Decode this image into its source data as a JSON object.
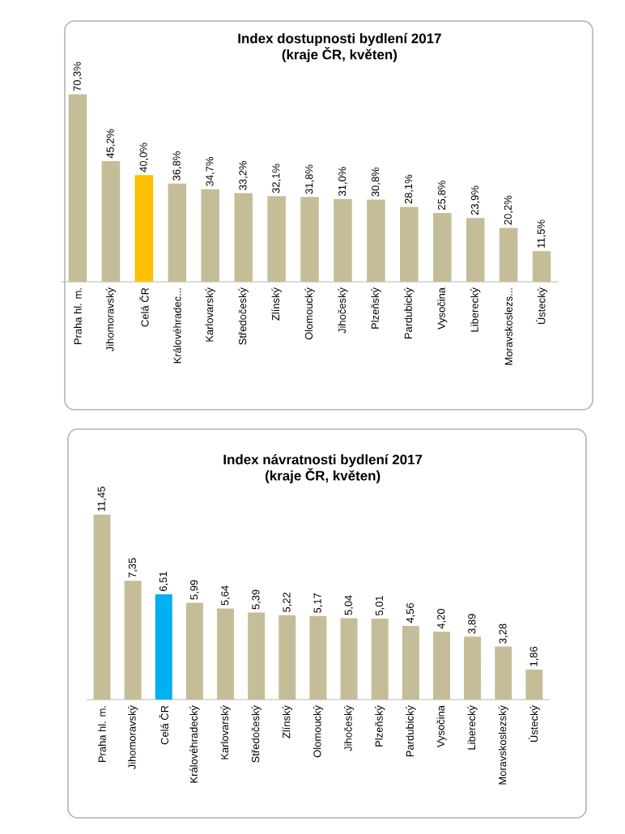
{
  "chart_data": [
    {
      "type": "bar",
      "title": "Index dostupnosti bydlení 2017",
      "subtitle": "(kraje ČR, květen)",
      "categories": [
        "Praha hl. m.",
        "Jihomoravský",
        "Celá ČR",
        "Královéhradec...",
        "Karlovarský",
        "Středočeský",
        "Zlínský",
        "Olomoucký",
        "Jihočeský",
        "Plzeňský",
        "Pardubický",
        "Vysočina",
        "Liberecký",
        "Moravskoslezs...",
        "Ústecký"
      ],
      "values": [
        70.3,
        45.2,
        40.0,
        36.8,
        34.7,
        33.2,
        32.1,
        31.8,
        31.0,
        30.8,
        28.1,
        25.8,
        23.9,
        20.2,
        11.5
      ],
      "value_labels": [
        "70,3%",
        "45,2%",
        "40,0%",
        "36,8%",
        "34,7%",
        "33,2%",
        "32,1%",
        "31,8%",
        "31,0%",
        "30,8%",
        "28,1%",
        "25,8%",
        "23,9%",
        "20,2%",
        "11,5%"
      ],
      "colors": [
        "#c4bd97",
        "#c4bd97",
        "#ffc000",
        "#c4bd97",
        "#c4bd97",
        "#c4bd97",
        "#c4bd97",
        "#c4bd97",
        "#c4bd97",
        "#c4bd97",
        "#c4bd97",
        "#c4bd97",
        "#c4bd97",
        "#c4bd97",
        "#c4bd97"
      ]
    },
    {
      "type": "bar",
      "title": "Index návratnosti bydlení 2017",
      "subtitle": "(kraje ČR, květen)",
      "categories": [
        "Praha hl. m.",
        "Jihomoravský",
        "Celá ČR",
        "Královéhradecký",
        "Karlovarský",
        "Středočeský",
        "Zlínský",
        "Olomoucký",
        "Jihočeský",
        "Plzeňský",
        "Pardubický",
        "Vysočina",
        "Liberecký",
        "Moravskoslezský",
        "Ústecký"
      ],
      "values": [
        11.45,
        7.35,
        6.51,
        5.99,
        5.64,
        5.39,
        5.22,
        5.17,
        5.04,
        5.01,
        4.56,
        4.2,
        3.89,
        3.28,
        1.86
      ],
      "value_labels": [
        "11,45",
        "7,35",
        "6,51",
        "5,99",
        "5,64",
        "5,39",
        "5,22",
        "5,17",
        "5,04",
        "5,01",
        "4,56",
        "4,20",
        "3,89",
        "3,28",
        "1,86"
      ],
      "colors": [
        "#c4bd97",
        "#c4bd97",
        "#00b0f0",
        "#c4bd97",
        "#c4bd97",
        "#c4bd97",
        "#c4bd97",
        "#c4bd97",
        "#c4bd97",
        "#c4bd97",
        "#c4bd97",
        "#c4bd97",
        "#c4bd97",
        "#c4bd97",
        "#c4bd97"
      ]
    }
  ]
}
